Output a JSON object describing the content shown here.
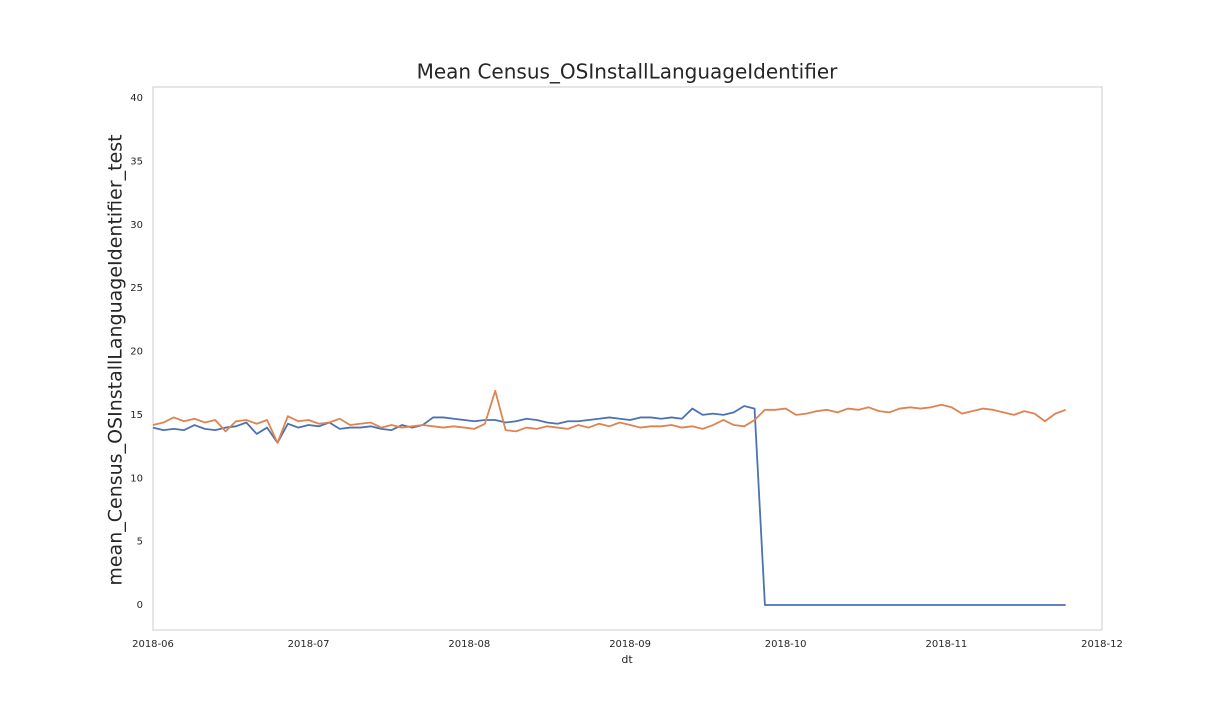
{
  "chart_data": {
    "type": "line",
    "title": "Mean Census_OSInstallLanguageIdentifier",
    "x_label": "dt",
    "y_label": "mean_Census_OSInstallLanguageIdentifier_test",
    "x": [
      0,
      2,
      4,
      6,
      8,
      10,
      12,
      14,
      16,
      18,
      20,
      22,
      24,
      26,
      28,
      30,
      32,
      34,
      36,
      38,
      40,
      42,
      44,
      46,
      48,
      50,
      52,
      54,
      56,
      58,
      60,
      62,
      64,
      66,
      68,
      70,
      72,
      74,
      76,
      78,
      80,
      82,
      84,
      86,
      88,
      90,
      92,
      94,
      96,
      98,
      100,
      102,
      104,
      106,
      108,
      110,
      112,
      114,
      116,
      118,
      120,
      122,
      124,
      126,
      128,
      130,
      132,
      134,
      136,
      138,
      140,
      142,
      144,
      146,
      148,
      150,
      152,
      154,
      156,
      158,
      160,
      162,
      164,
      166,
      168,
      170,
      172,
      174,
      176
    ],
    "series": [
      {
        "color": "#4c72b0",
        "values": [
          14.0,
          13.8,
          13.9,
          13.8,
          14.2,
          13.9,
          13.8,
          14.0,
          14.1,
          14.4,
          13.5,
          14.0,
          12.8,
          14.3,
          14.0,
          14.2,
          14.1,
          14.4,
          13.9,
          14.0,
          14.0,
          14.1,
          13.9,
          13.8,
          14.2,
          14.0,
          14.2,
          14.8,
          14.8,
          14.7,
          14.6,
          14.5,
          14.6,
          14.6,
          14.4,
          14.5,
          14.7,
          14.6,
          14.4,
          14.3,
          14.5,
          14.5,
          14.6,
          14.7,
          14.8,
          14.7,
          14.6,
          14.8,
          14.8,
          14.7,
          14.8,
          14.7,
          15.5,
          15.0,
          15.1,
          15.0,
          15.2,
          15.7,
          15.5,
          0,
          0,
          0,
          0,
          0,
          0,
          0,
          0,
          0,
          0,
          0,
          0,
          0,
          0,
          0,
          0,
          0,
          0,
          0,
          0,
          0,
          0,
          0,
          0,
          0,
          0,
          0,
          0,
          0,
          0
        ]
      },
      {
        "color": "#dd8452",
        "values": [
          14.2,
          14.4,
          14.8,
          14.5,
          14.7,
          14.4,
          14.6,
          13.7,
          14.5,
          14.6,
          14.3,
          14.6,
          12.8,
          14.9,
          14.5,
          14.6,
          14.3,
          14.4,
          14.7,
          14.2,
          14.3,
          14.4,
          14.0,
          14.2,
          14.0,
          14.1,
          14.2,
          14.1,
          14.0,
          14.1,
          14.0,
          13.9,
          14.3,
          16.9,
          13.8,
          13.7,
          14.0,
          13.9,
          14.1,
          14.0,
          13.9,
          14.2,
          14.0,
          14.3,
          14.1,
          14.4,
          14.2,
          14.0,
          14.1,
          14.1,
          14.2,
          14.0,
          14.1,
          13.9,
          14.2,
          14.6,
          14.2,
          14.1,
          14.6,
          15.4,
          15.4,
          15.5,
          15.0,
          15.1,
          15.3,
          15.4,
          15.2,
          15.5,
          15.4,
          15.6,
          15.3,
          15.2,
          15.5,
          15.6,
          15.5,
          15.6,
          15.8,
          15.6,
          15.1,
          15.3,
          15.5,
          15.4,
          15.2,
          15.0,
          15.3,
          15.1,
          14.5,
          15.1,
          15.4
        ]
      }
    ],
    "xlim": [
      0,
      183
    ],
    "xticks": [
      {
        "value": 0,
        "label": "2018-06"
      },
      {
        "value": 30,
        "label": "2018-07"
      },
      {
        "value": 61,
        "label": "2018-08"
      },
      {
        "value": 92,
        "label": "2018-09"
      },
      {
        "value": 122,
        "label": "2018-10"
      },
      {
        "value": 153,
        "label": "2018-11"
      },
      {
        "value": 183,
        "label": "2018-12"
      }
    ],
    "ylim": [
      -1.97,
      40.87
    ],
    "yticks": [
      0,
      5,
      10,
      15,
      20,
      25,
      30,
      35,
      40
    ],
    "grid": false
  }
}
